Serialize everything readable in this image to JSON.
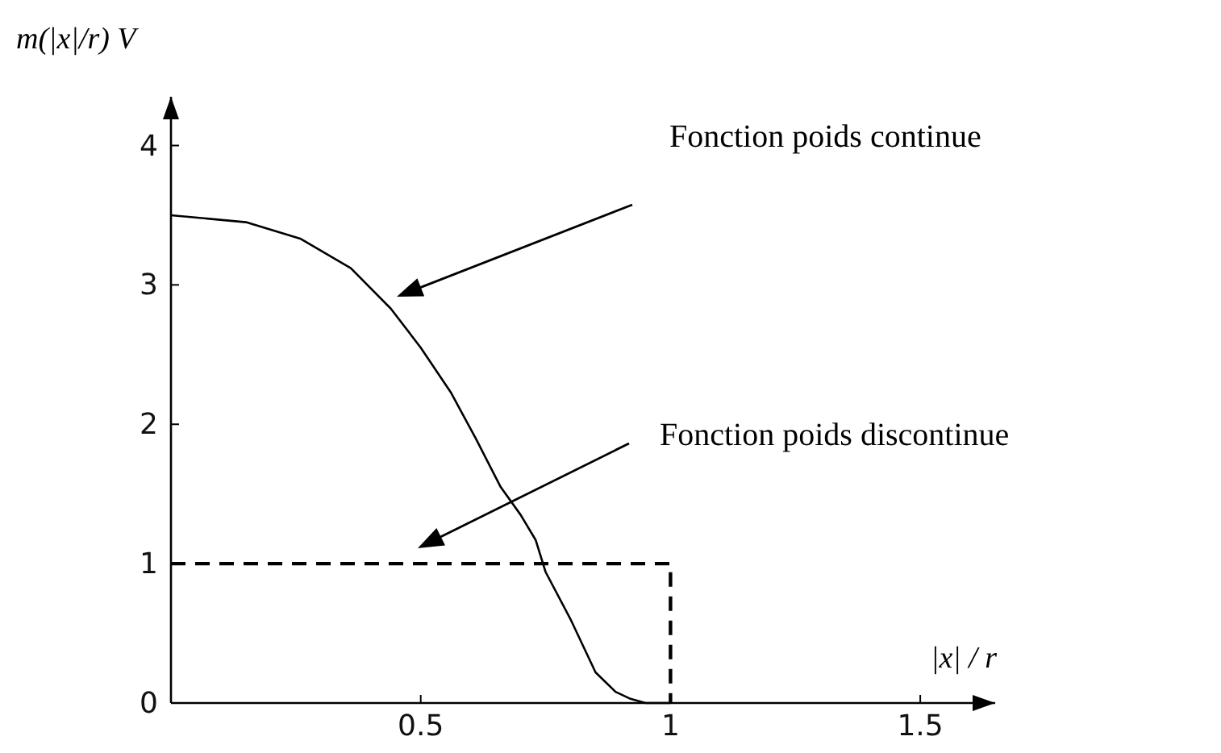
{
  "chart_data": {
    "type": "line",
    "xlabel": "|x| / r",
    "ylabel": "m(|x|/r) V",
    "xlim": [
      0,
      1.65
    ],
    "ylim": [
      0,
      4.35
    ],
    "xticks": [
      0.5,
      1,
      1.5
    ],
    "yticks": [
      0,
      1,
      2,
      3,
      4
    ],
    "grid": false,
    "marker": "none",
    "series": [
      {
        "color": "#000000",
        "line_style": "solid",
        "x": [
          0,
          0.15,
          0.26,
          0.36,
          0.44,
          0.5,
          0.56,
          0.61,
          0.66,
          0.7,
          0.73,
          0.75,
          0.8,
          0.85,
          0.89,
          0.92,
          0.95,
          1.0
        ],
        "values": [
          3.5,
          3.45,
          3.33,
          3.12,
          2.83,
          2.55,
          2.23,
          1.9,
          1.55,
          1.35,
          1.17,
          0.94,
          0.6,
          0.22,
          0.08,
          0.03,
          0,
          0
        ]
      },
      {
        "color": "#000000",
        "line_style": "dashed",
        "x": [
          0,
          1,
          1
        ],
        "values": [
          1,
          1,
          0
        ]
      }
    ],
    "annotations": [
      "Fonction poids continue",
      "Fonction poids discontinue"
    ]
  }
}
